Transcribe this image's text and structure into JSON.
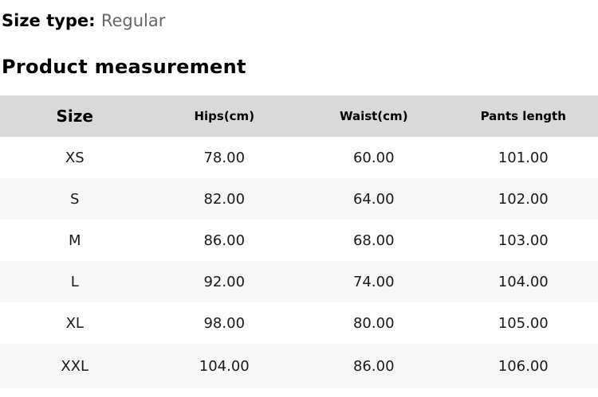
{
  "size_type": {
    "label": "Size type:",
    "value": "Regular"
  },
  "section_title": "Product measurement",
  "table": {
    "columns": [
      "Size",
      "Hips(cm)",
      "Waist(cm)",
      "Pants length"
    ],
    "rows": [
      [
        "XS",
        "78.00",
        "60.00",
        "101.00"
      ],
      [
        "S",
        "82.00",
        "64.00",
        "102.00"
      ],
      [
        "M",
        "86.00",
        "68.00",
        "103.00"
      ],
      [
        "L",
        "92.00",
        "74.00",
        "104.00"
      ],
      [
        "XL",
        "98.00",
        "80.00",
        "105.00"
      ],
      [
        "XXL",
        "104.00",
        "86.00",
        "106.00"
      ]
    ]
  },
  "colors": {
    "header_bg": "#d9d9d9",
    "stripe_bg": "#f7f7f7",
    "muted_text": "#666666",
    "text": "#1a1a1a"
  }
}
